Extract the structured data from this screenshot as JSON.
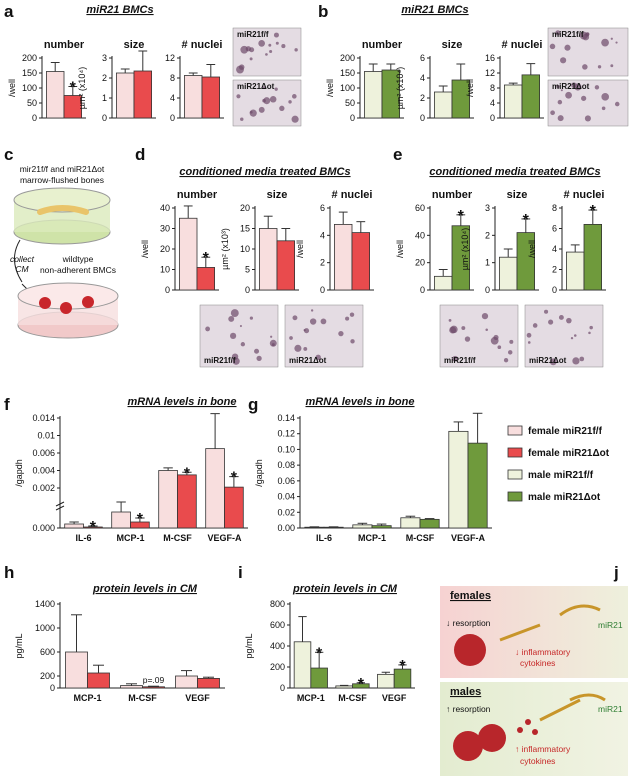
{
  "panel_labels": [
    "a",
    "b",
    "c",
    "d",
    "e",
    "f",
    "g",
    "h",
    "i",
    "j"
  ],
  "headings": {
    "a": "miR21 BMCs",
    "b": "miR21 BMCs",
    "d": "conditioned media treated BMCs",
    "e": "conditioned media treated BMCs",
    "f": "mRNA levels in bone",
    "g": "mRNA levels in bone",
    "h": "protein levels in CM",
    "i": "protein levels in CM"
  },
  "micrographs": {
    "a": [
      "miR21f/f",
      "miR21Δot"
    ],
    "b": [
      "miR21f/f",
      "miR21Δot"
    ],
    "d": [
      "miR21f/f",
      "miR21Δot"
    ],
    "e": [
      "miR21f/f",
      "miR21Δot"
    ]
  },
  "diagram_c": {
    "source": [
      "mir21f/f and miR21Δot",
      "marrow-flushed bones"
    ],
    "step": [
      "collect",
      "CM"
    ],
    "target": [
      "wildtype",
      "non-adherent BMCs"
    ]
  },
  "diagram_j": {
    "females": {
      "title": "females",
      "resorption": "↓ resorption",
      "gene": "miR21",
      "cytokines": [
        "↓ inflammatory",
        "cytokines"
      ]
    },
    "males": {
      "title": "males",
      "resorption": "↑ resorption",
      "gene": "miR21",
      "cytokines": [
        "↑ inflammatory",
        "cytokines"
      ]
    }
  },
  "chart_data": [
    {
      "type": "bar",
      "title": "number",
      "ylabel": "/well",
      "ylim": [
        0,
        200
      ],
      "yticks": [
        0,
        50,
        100,
        150,
        200
      ],
      "series": [
        {
          "color": "#f8dede",
          "values": [
            155
          ],
          "errors": [
            30
          ]
        },
        {
          "color": "#e94b4d",
          "values": [
            75
          ],
          "errors": [
            30
          ],
          "stars": [
            "*"
          ]
        }
      ]
    },
    {
      "type": "bar",
      "title": "size",
      "ylabel": "µm² (x10⁴)",
      "ylim": [
        0,
        3
      ],
      "yticks": [
        0,
        1,
        2,
        3
      ],
      "series": [
        {
          "color": "#f8dede",
          "values": [
            2.25
          ],
          "errors": [
            0.2
          ]
        },
        {
          "color": "#e94b4d",
          "values": [
            2.35
          ],
          "errors": [
            1.0
          ]
        }
      ]
    },
    {
      "type": "bar",
      "title": "# nuclei",
      "ylim": [
        0,
        12
      ],
      "yticks": [
        0,
        4,
        8,
        12
      ],
      "series": [
        {
          "color": "#f8dede",
          "values": [
            8.5
          ],
          "errors": [
            0.5
          ]
        },
        {
          "color": "#e94b4d",
          "values": [
            8.2
          ],
          "errors": [
            2.5
          ]
        }
      ]
    },
    {
      "type": "bar",
      "title": "number",
      "ylabel": "/well",
      "ylim": [
        0,
        200
      ],
      "yticks": [
        0,
        50,
        100,
        150,
        200
      ],
      "series": [
        {
          "color": "#eef2dc",
          "values": [
            155
          ],
          "errors": [
            25
          ]
        },
        {
          "color": "#6f9a3c",
          "values": [
            160
          ],
          "errors": [
            20
          ]
        }
      ]
    },
    {
      "type": "bar",
      "title": "size",
      "ylabel": "µm² (x10⁴)",
      "ylim": [
        0,
        6
      ],
      "yticks": [
        0,
        2,
        4,
        6
      ],
      "series": [
        {
          "color": "#eef2dc",
          "values": [
            2.6
          ],
          "errors": [
            0.6
          ]
        },
        {
          "color": "#6f9a3c",
          "values": [
            3.8
          ],
          "errors": [
            1.6
          ]
        }
      ]
    },
    {
      "type": "bar",
      "title": "# nuclei",
      "ylabel": "/well",
      "ylim": [
        0,
        16
      ],
      "yticks": [
        0,
        4,
        8,
        12,
        16
      ],
      "series": [
        {
          "color": "#eef2dc",
          "values": [
            8.8
          ],
          "errors": [
            0.5
          ]
        },
        {
          "color": "#6f9a3c",
          "values": [
            11.5
          ],
          "errors": [
            3
          ]
        }
      ]
    },
    {
      "type": "bar",
      "title": "number",
      "ylabel": "/well",
      "ylim": [
        0,
        40
      ],
      "yticks": [
        0,
        10,
        20,
        30,
        40
      ],
      "series": [
        {
          "color": "#f8dede",
          "values": [
            35
          ],
          "errors": [
            6
          ]
        },
        {
          "color": "#e94b4d",
          "values": [
            11
          ],
          "errors": [
            5
          ],
          "stars": [
            "*"
          ]
        }
      ]
    },
    {
      "type": "bar",
      "title": "size",
      "ylabel": "µm² (x10³)",
      "ylim": [
        0,
        20
      ],
      "yticks": [
        0,
        5,
        10,
        15,
        20
      ],
      "series": [
        {
          "color": "#f8dede",
          "values": [
            15
          ],
          "errors": [
            3
          ]
        },
        {
          "color": "#e94b4d",
          "values": [
            12
          ],
          "errors": [
            3
          ]
        }
      ]
    },
    {
      "type": "bar",
      "title": "# nuclei",
      "ylabel": "/well",
      "ylim": [
        0,
        6
      ],
      "yticks": [
        0,
        2,
        4,
        6
      ],
      "series": [
        {
          "color": "#f8dede",
          "values": [
            4.8
          ],
          "errors": [
            0.9
          ]
        },
        {
          "color": "#e94b4d",
          "values": [
            4.2
          ],
          "errors": [
            0.8
          ]
        }
      ]
    },
    {
      "type": "bar",
      "title": "number",
      "ylabel": "/well",
      "ylim": [
        0,
        60
      ],
      "yticks": [
        0,
        20,
        40,
        60
      ],
      "series": [
        {
          "color": "#eef2dc",
          "values": [
            10
          ],
          "errors": [
            5
          ]
        },
        {
          "color": "#6f9a3c",
          "values": [
            47
          ],
          "errors": [
            8
          ],
          "stars": [
            "*"
          ]
        }
      ]
    },
    {
      "type": "bar",
      "title": "size",
      "ylabel": "µm² (x10⁴)",
      "ylim": [
        0,
        3
      ],
      "yticks": [
        0,
        1,
        2,
        3
      ],
      "series": [
        {
          "color": "#eef2dc",
          "values": [
            1.2
          ],
          "errors": [
            0.3
          ]
        },
        {
          "color": "#6f9a3c",
          "values": [
            2.1
          ],
          "errors": [
            0.5
          ],
          "stars": [
            "*"
          ]
        }
      ]
    },
    {
      "type": "bar",
      "title": "# nuclei",
      "ylabel": "/well",
      "ylim": [
        0,
        8
      ],
      "yticks": [
        0,
        2,
        4,
        6,
        8
      ],
      "series": [
        {
          "color": "#eef2dc",
          "values": [
            3.7
          ],
          "errors": [
            0.7
          ]
        },
        {
          "color": "#6f9a3c",
          "values": [
            6.4
          ],
          "errors": [
            1.4
          ],
          "stars": [
            "*"
          ]
        }
      ]
    },
    {
      "type": "bar",
      "ylabel": "/gapdh",
      "ybreak": true,
      "ylim": [
        0,
        0.014
      ],
      "yticks": [
        {
          "value": 0,
          "label": "0.000"
        },
        0.002,
        0.004,
        0.006,
        0.01,
        0.014
      ],
      "categories": [
        "IL-6",
        "MCP-1",
        "M-CSF",
        "VEGF-A"
      ],
      "series": [
        {
          "name": "female miR21f/f",
          "color": "#f8dede",
          "values": [
            0.0002,
            0.0008,
            0.004,
            0.007
          ],
          "errors": [
            0.0001,
            0.0005,
            0.0003,
            0.008
          ]
        },
        {
          "name": "female miR21Δot",
          "color": "#e94b4d",
          "values": [
            5e-05,
            0.0003,
            0.0035,
            0.0021
          ],
          "errors": [
            5e-05,
            0.0002,
            0.0003,
            0.0012
          ],
          "stars": [
            "*",
            "*",
            "*",
            "*"
          ]
        }
      ]
    },
    {
      "type": "bar",
      "ylabel": "/gapdh",
      "ylim": [
        0,
        0.14
      ],
      "yticks": [
        {
          "value": 0,
          "label": "0.00"
        },
        0.02,
        0.04,
        0.06,
        0.08,
        {
          "value": 0.1,
          "label": "0.10"
        },
        0.12,
        0.14
      ],
      "categories": [
        "IL-6",
        "MCP-1",
        "M-CSF",
        "VEGF-A"
      ],
      "series": [
        {
          "name": "male miR21f/f",
          "color": "#eef2dc",
          "values": [
            0.001,
            0.004,
            0.013,
            0.123
          ],
          "errors": [
            0.0005,
            0.002,
            0.002,
            0.012
          ]
        },
        {
          "name": "male miR21Δot",
          "color": "#6f9a3c",
          "values": [
            0.001,
            0.003,
            0.011,
            0.108
          ],
          "errors": [
            0.0005,
            0.002,
            0.001,
            0.038
          ]
        }
      ]
    },
    {
      "type": "bar",
      "ylabel": "pg/mL",
      "ylim": [
        0,
        1400
      ],
      "yticks": [
        0,
        200,
        600,
        1000,
        1400
      ],
      "categories": [
        "MCP-1",
        "M-CSF",
        "VEGF"
      ],
      "series": [
        {
          "color": "#f8dede",
          "values": [
            600,
            40,
            200
          ],
          "errors": [
            620,
            30,
            90
          ]
        },
        {
          "color": "#e94b4d",
          "values": [
            250,
            20,
            160
          ],
          "errors": [
            130,
            10,
            20
          ],
          "stars": [
            null,
            "p=.09",
            null
          ]
        }
      ]
    },
    {
      "type": "bar",
      "ylabel": "pg/mL",
      "ylim": [
        0,
        800
      ],
      "yticks": [
        0,
        200,
        400,
        600,
        800
      ],
      "categories": [
        "MCP-1",
        "M-CSF",
        "VEGF"
      ],
      "series": [
        {
          "color": "#eef2dc",
          "values": [
            440,
            20,
            130
          ],
          "errors": [
            240,
            5,
            20
          ]
        },
        {
          "color": "#6f9a3c",
          "values": [
            190,
            40,
            180
          ],
          "errors": [
            150,
            10,
            40
          ],
          "stars": [
            "*",
            "*",
            "*"
          ]
        }
      ]
    }
  ]
}
